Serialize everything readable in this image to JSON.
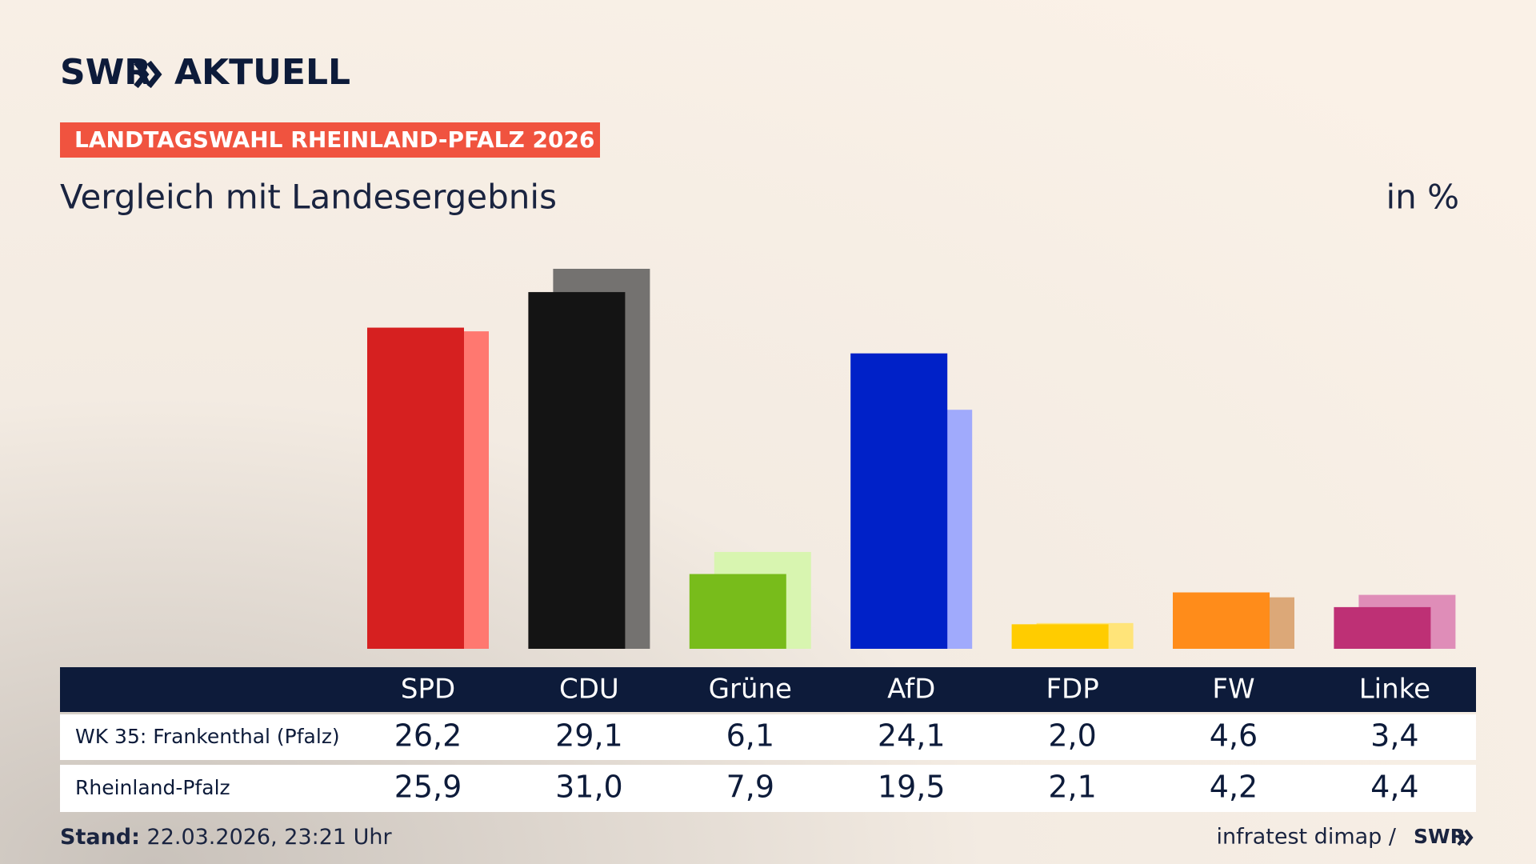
{
  "chart_data": {
    "type": "bar",
    "brand": "SWR",
    "brand_suffix": "AKTUELL",
    "title": "LANDTAGSWAHL RHEINLAND-PFALZ 2026",
    "subtitle": "Vergleich mit Landesergebnis",
    "unit": "in %",
    "categories": [
      "SPD",
      "CDU",
      "Grüne",
      "AfD",
      "FDP",
      "FW",
      "Linke"
    ],
    "series": [
      {
        "name": "WK 35: Frankenthal (Pfalz)",
        "colors": [
          "#d62020",
          "#141414",
          "#78bc1b",
          "#0021c8",
          "#ffcc00",
          "#ff8c1a",
          "#be3075"
        ],
        "values": [
          26.2,
          29.1,
          6.1,
          24.1,
          2.0,
          4.6,
          3.4
        ],
        "value_labels": [
          "26,2",
          "29,1",
          "6,1",
          "24,1",
          "2,0",
          "4,6",
          "3,4"
        ]
      },
      {
        "name": "Rheinland-Pfalz",
        "colors": [
          "#ff7870",
          "#747270",
          "#d8f5b0",
          "#a0aafc",
          "#ffe479",
          "#dca878",
          "#df8db8"
        ],
        "values": [
          25.9,
          31.0,
          7.9,
          19.5,
          2.1,
          4.2,
          4.4
        ],
        "value_labels": [
          "25,9",
          "31,0",
          "7,9",
          "19,5",
          "2,1",
          "4,2",
          "4,4"
        ]
      }
    ],
    "ylim": [
      0,
      31
    ],
    "stand_label": "Stand:",
    "stand": "22.03.2026, 23:21 Uhr",
    "source": "infratest dimap /",
    "source_brand": "SWR"
  }
}
